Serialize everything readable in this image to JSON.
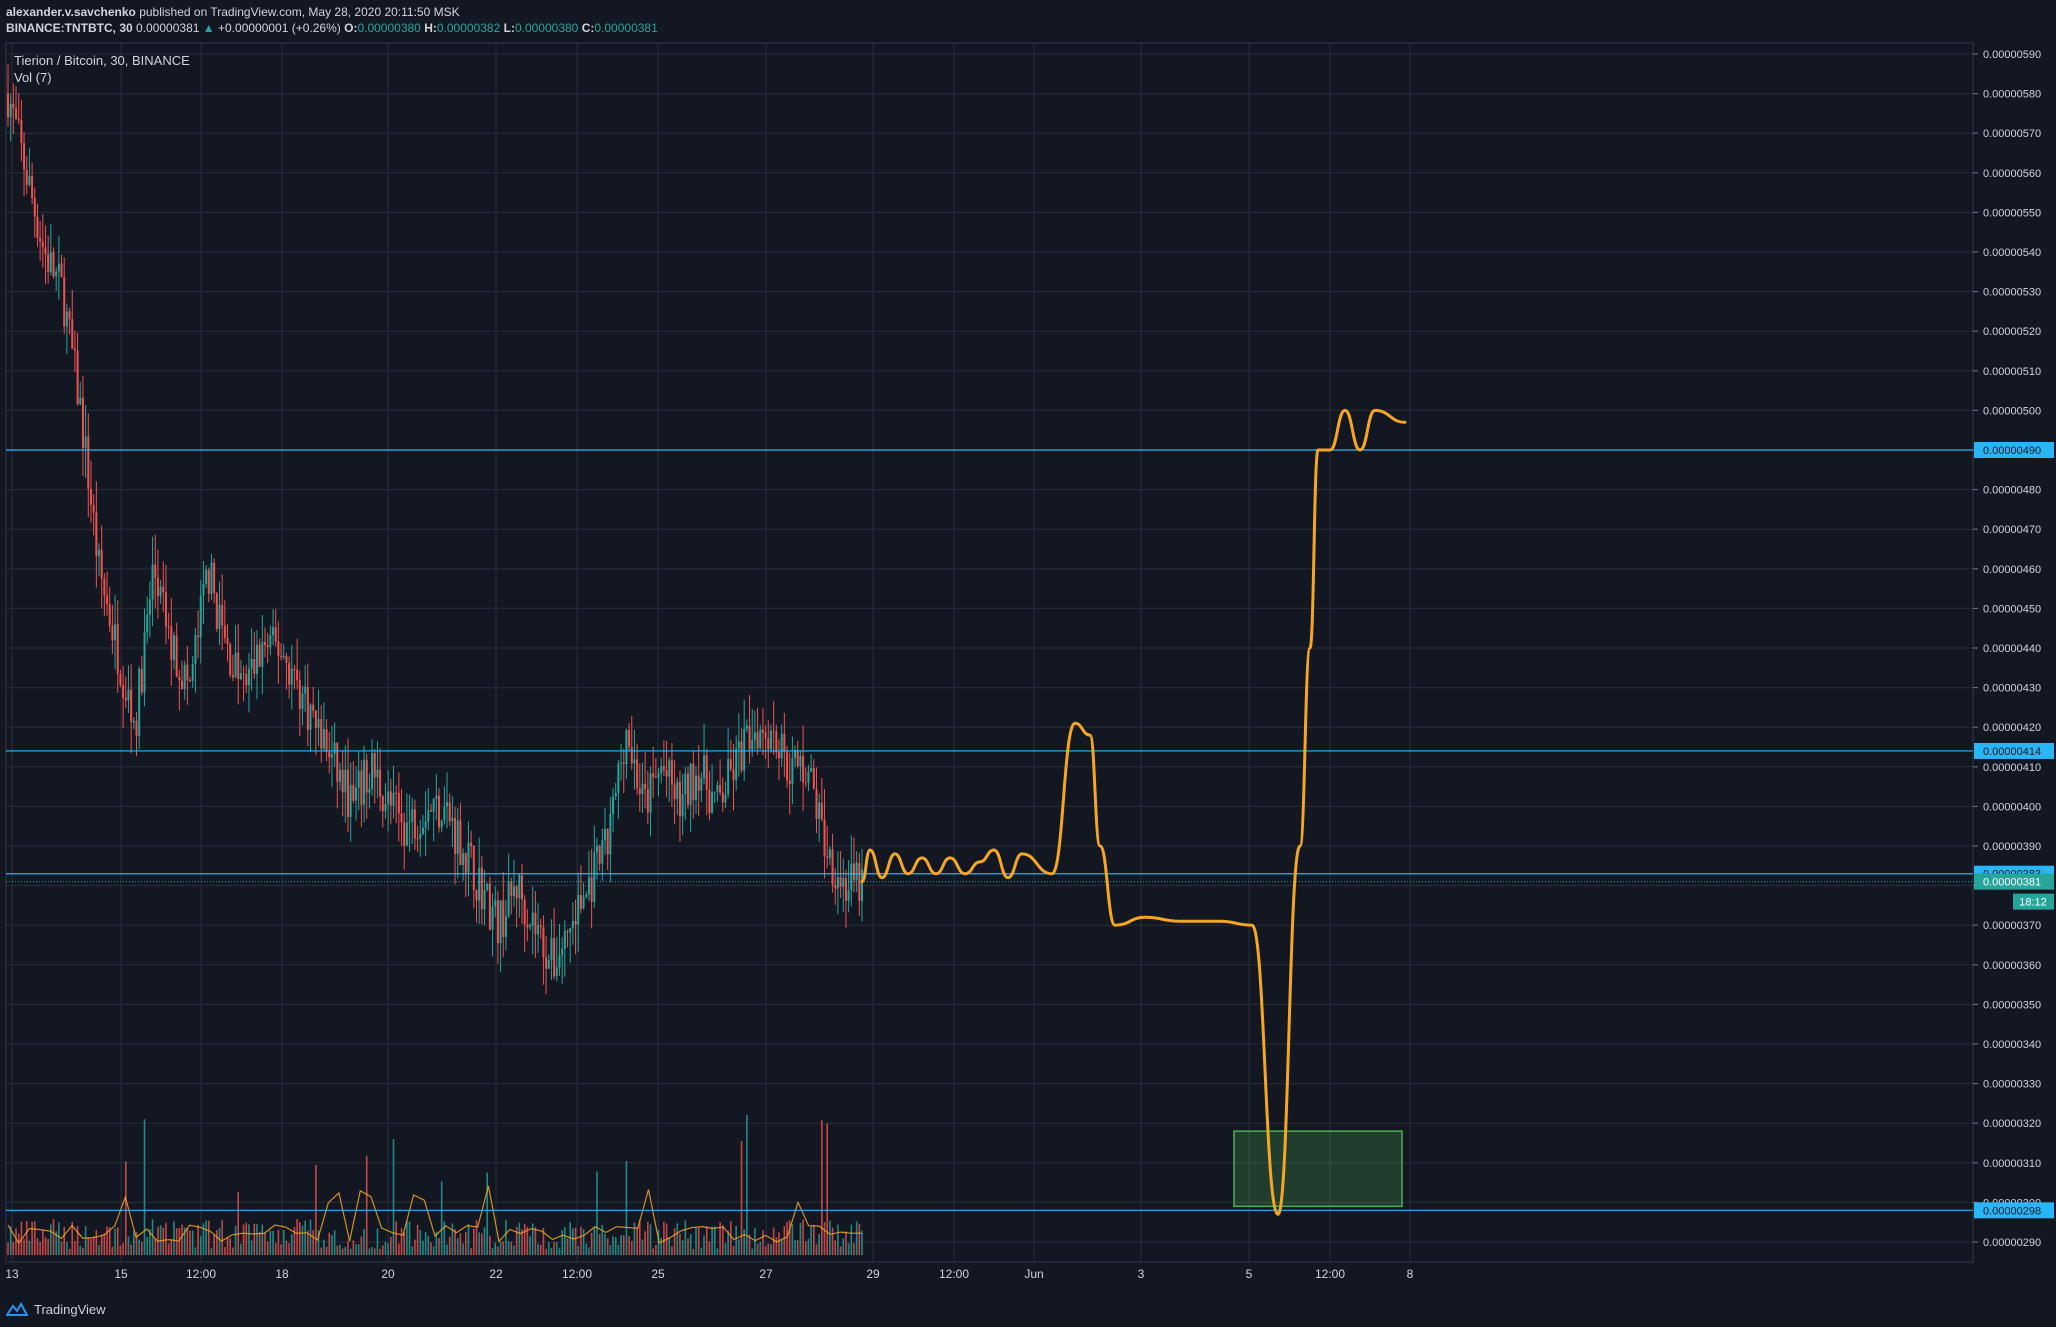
{
  "header": {
    "author": "alexander.v.savchenko",
    "published": " published on TradingView.com, May 28, 2020 20:11:50 MSK",
    "symbol": "BINANCE:TNTBTC, 30",
    "price": "0.00000381",
    "change_arrow": "▲",
    "change": "+0.00000001 (+0.26%)",
    "o_label": "O:",
    "o_value": "0.00000380",
    "h_label": "H:",
    "h_value": "0.00000382",
    "l_label": "L:",
    "l_value": "0.00000380",
    "c_label": "C:",
    "c_value": "0.00000381"
  },
  "legend": {
    "title": "Tierion / Bitcoin, 30, BINANCE",
    "volume": "Vol (7)"
  },
  "footer": {
    "brand": "TradingView"
  },
  "colors": {
    "background": "#131722",
    "grid": "#2a2e39",
    "bull": "#26a69a",
    "bear": "#ef5350",
    "projection": "#f5a623",
    "level": "#29b6f6",
    "vol_ma": "#f5a623",
    "target_box": "#4caf50"
  },
  "chart_data": {
    "type": "candlestick",
    "y_axis": {
      "min": 2.9e-06,
      "max": 5.9e-06,
      "ticks": [
        "0.00000590",
        "0.00000580",
        "0.00000570",
        "0.00000560",
        "0.00000550",
        "0.00000540",
        "0.00000530",
        "0.00000520",
        "0.00000510",
        "0.00000500",
        "0.00000490",
        "0.00000480",
        "0.00000470",
        "0.00000460",
        "0.00000450",
        "0.00000440",
        "0.00000430",
        "0.00000420",
        "0.00000410",
        "0.00000400",
        "0.00000390",
        "0.00000380",
        "0.00000370",
        "0.00000360",
        "0.00000350",
        "0.00000340",
        "0.00000330",
        "0.00000320",
        "0.00000310",
        "0.00000300",
        "0.00000290"
      ]
    },
    "x_axis": {
      "ticks": [
        "13",
        "15",
        "12:00",
        "18",
        "20",
        "22",
        "12:00",
        "25",
        "27",
        "29",
        "12:00",
        "Jun",
        "3",
        "5",
        "12:00",
        "8"
      ]
    },
    "price_path": [
      [
        0,
        5.8e-06
      ],
      [
        1,
        5.6e-06
      ],
      [
        2,
        5.4e-06
      ],
      [
        3,
        5.3e-06
      ],
      [
        4,
        5e-06
      ],
      [
        5,
        4.6e-06
      ],
      [
        6,
        4.4e-06
      ],
      [
        7,
        4.2e-06
      ],
      [
        8,
        4.6e-06
      ],
      [
        9,
        4.4e-06
      ],
      [
        10,
        4.3e-06
      ],
      [
        11,
        4.6e-06
      ],
      [
        12,
        4.4e-06
      ],
      [
        13,
        4.3e-06
      ],
      [
        14,
        4.4e-06
      ],
      [
        15,
        4.4e-06
      ],
      [
        16,
        4.3e-06
      ],
      [
        17,
        4.2e-06
      ],
      [
        18,
        4.1e-06
      ],
      [
        19,
        4e-06
      ],
      [
        20,
        4.1e-06
      ],
      [
        21,
        4e-06
      ],
      [
        22,
        3.95e-06
      ],
      [
        23,
        4e-06
      ],
      [
        24,
        4e-06
      ],
      [
        25,
        3.9e-06
      ],
      [
        26,
        3.8e-06
      ],
      [
        27,
        3.7e-06
      ],
      [
        28,
        3.8e-06
      ],
      [
        29,
        3.7e-06
      ],
      [
        30,
        3.6e-06
      ],
      [
        31,
        3.7e-06
      ],
      [
        32,
        3.8e-06
      ],
      [
        33,
        3.9e-06
      ],
      [
        34,
        4.2e-06
      ],
      [
        35,
        4e-06
      ],
      [
        36,
        4.1e-06
      ],
      [
        37,
        4e-06
      ],
      [
        38,
        4.1e-06
      ],
      [
        39,
        4e-06
      ],
      [
        40,
        4.1e-06
      ],
      [
        41,
        4.2e-06
      ],
      [
        42,
        4.2e-06
      ],
      [
        43,
        4.1e-06
      ],
      [
        44,
        4.1e-06
      ],
      [
        45,
        3.9e-06
      ],
      [
        46,
        3.8e-06
      ],
      [
        47,
        3.8e-06
      ]
    ],
    "levels": [
      {
        "value": 4.9e-06,
        "label": "0.00000490"
      },
      {
        "value": 4.14e-06,
        "label": "0.00000414"
      },
      {
        "value": 3.83e-06,
        "label": "0.00000383"
      },
      {
        "value": 2.98e-06,
        "label": "0.00000298"
      }
    ],
    "current_price": {
      "value": 3.81e-06,
      "label": "0.00000381",
      "countdown": "18:12"
    },
    "projection_path": [
      [
        3.81e-06,
        "start"
      ],
      [
        3.89e-06
      ],
      [
        3.82e-06
      ],
      [
        3.88e-06
      ],
      [
        3.83e-06
      ],
      [
        3.87e-06
      ],
      [
        3.83e-06
      ],
      [
        3.87e-06
      ],
      [
        3.83e-06
      ],
      [
        3.86e-06
      ],
      [
        3.89e-06
      ],
      [
        3.82e-06
      ],
      [
        3.88e-06
      ],
      [
        3.83e-06
      ],
      [
        4.21e-06
      ],
      [
        4.18e-06
      ],
      [
        3.9e-06
      ],
      [
        3.7e-06
      ],
      [
        3.72e-06
      ],
      [
        3.71e-06
      ],
      [
        3.71e-06
      ],
      [
        3.7e-06
      ],
      [
        2.97e-06
      ],
      [
        3.9e-06
      ],
      [
        4.4e-06
      ],
      [
        4.9e-06
      ],
      [
        4.9e-06
      ],
      [
        5e-06
      ],
      [
        4.9e-06
      ],
      [
        5e-06
      ],
      [
        4.97e-06
      ]
    ],
    "target_zone": {
      "low": 2.99e-06,
      "high": 3.18e-06
    }
  }
}
